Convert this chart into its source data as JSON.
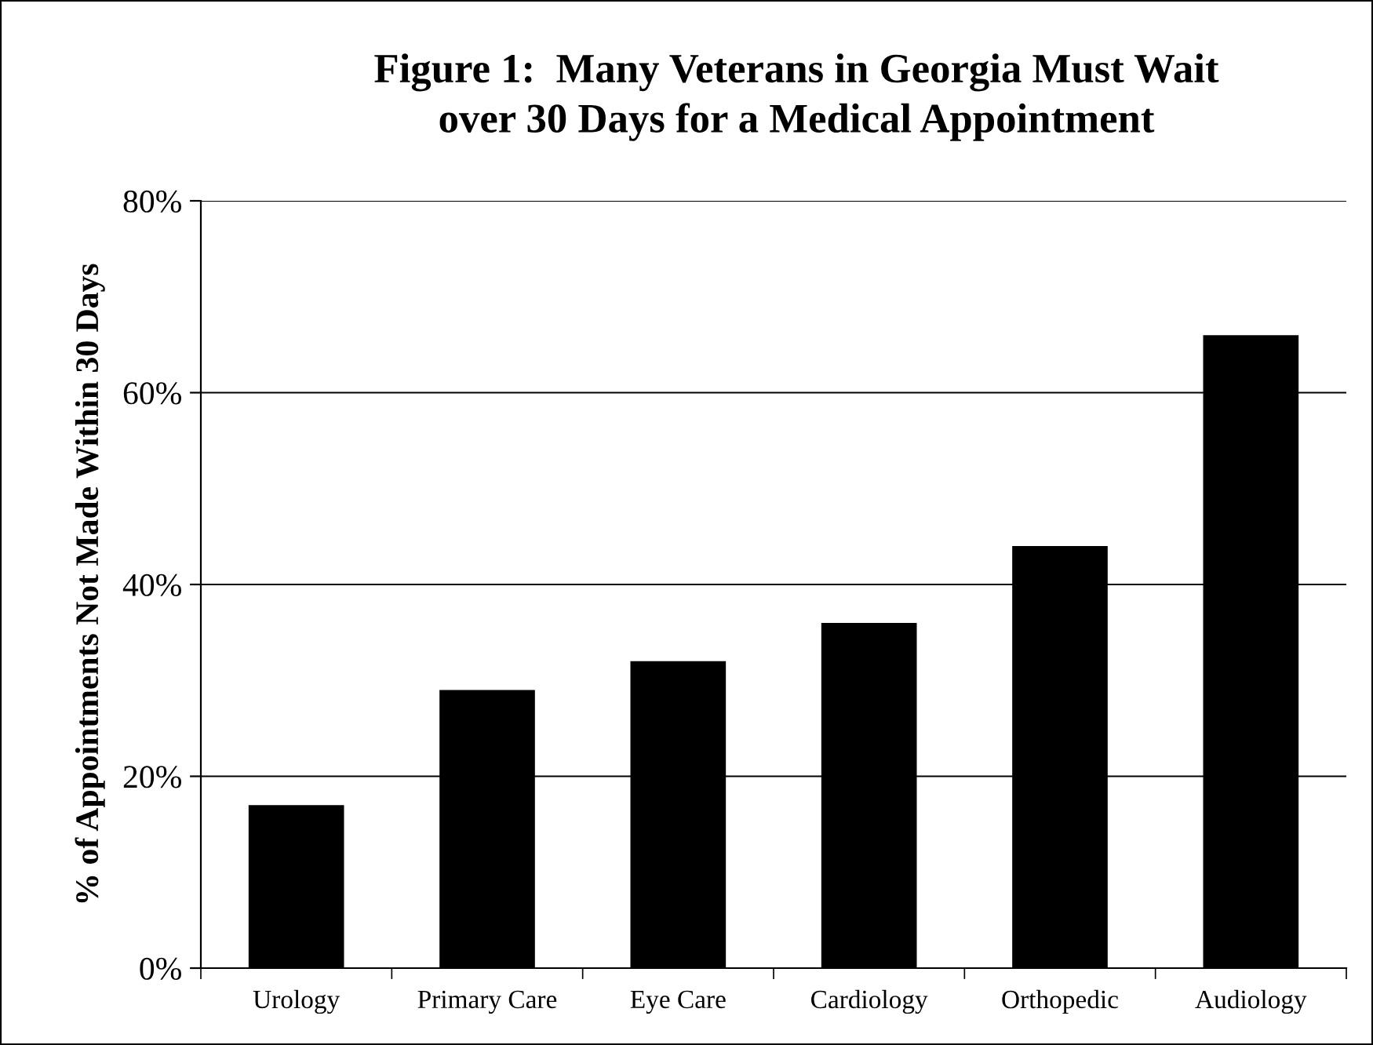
{
  "chart_data": {
    "type": "bar",
    "title": "Figure 1:  Many Veterans in Georgia Must Wait\nover 30 Days for a Medical Appointment",
    "ylabel": "% of Appointments Not Made Within 30 Days",
    "categories": [
      "Urology",
      "Primary Care",
      "Eye Care",
      "Cardiology",
      "Orthopedic",
      "Audiology"
    ],
    "values": [
      17,
      29,
      32,
      36,
      44,
      66
    ],
    "color": "#000000",
    "ylim": [
      0,
      80
    ],
    "yticks": [
      {
        "value": 0,
        "label": "0%"
      },
      {
        "value": 20,
        "label": "20%"
      },
      {
        "value": 40,
        "label": "40%"
      },
      {
        "value": 60,
        "label": "60%"
      },
      {
        "value": 80,
        "label": "80%"
      }
    ],
    "grid": "y",
    "legend": false
  }
}
